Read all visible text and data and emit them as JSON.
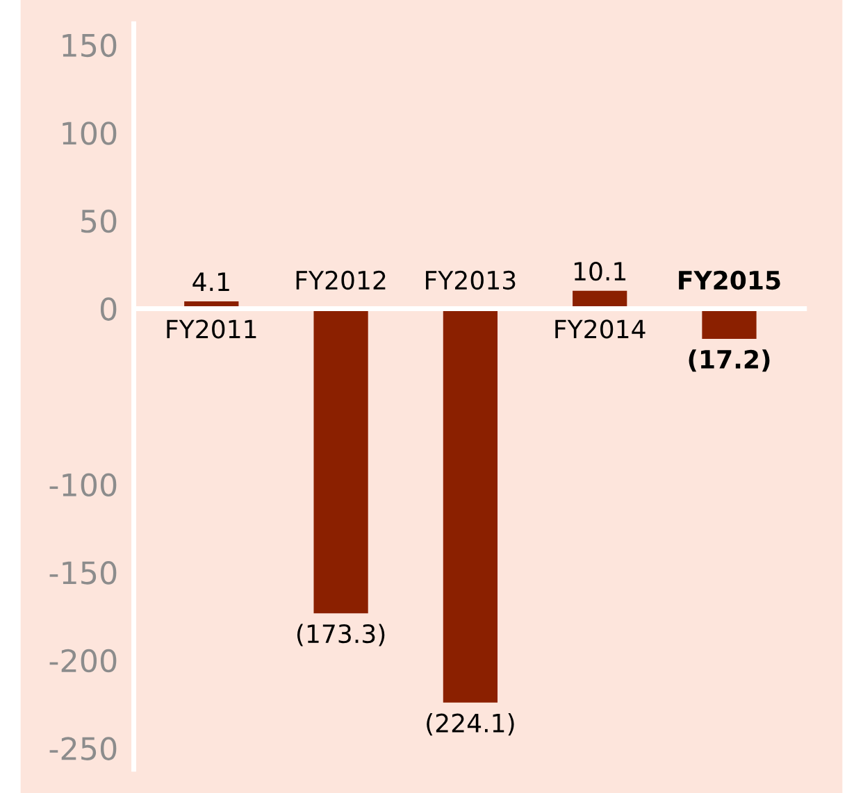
{
  "chart_data": {
    "type": "bar",
    "categories": [
      "FY2011",
      "FY2012",
      "FY2013",
      "FY2014",
      "FY2015"
    ],
    "values": [
      4.1,
      -173.3,
      -224.1,
      10.1,
      -17.2
    ],
    "value_labels": [
      "4.1",
      "(173.3)",
      "(224.1)",
      "10.1",
      "(17.2)"
    ],
    "color": "#8b2000",
    "ylim": [
      -262,
      162
    ],
    "yticks": [
      150,
      100,
      50,
      0,
      -100,
      -150,
      -200,
      -250
    ],
    "grid": false
  }
}
